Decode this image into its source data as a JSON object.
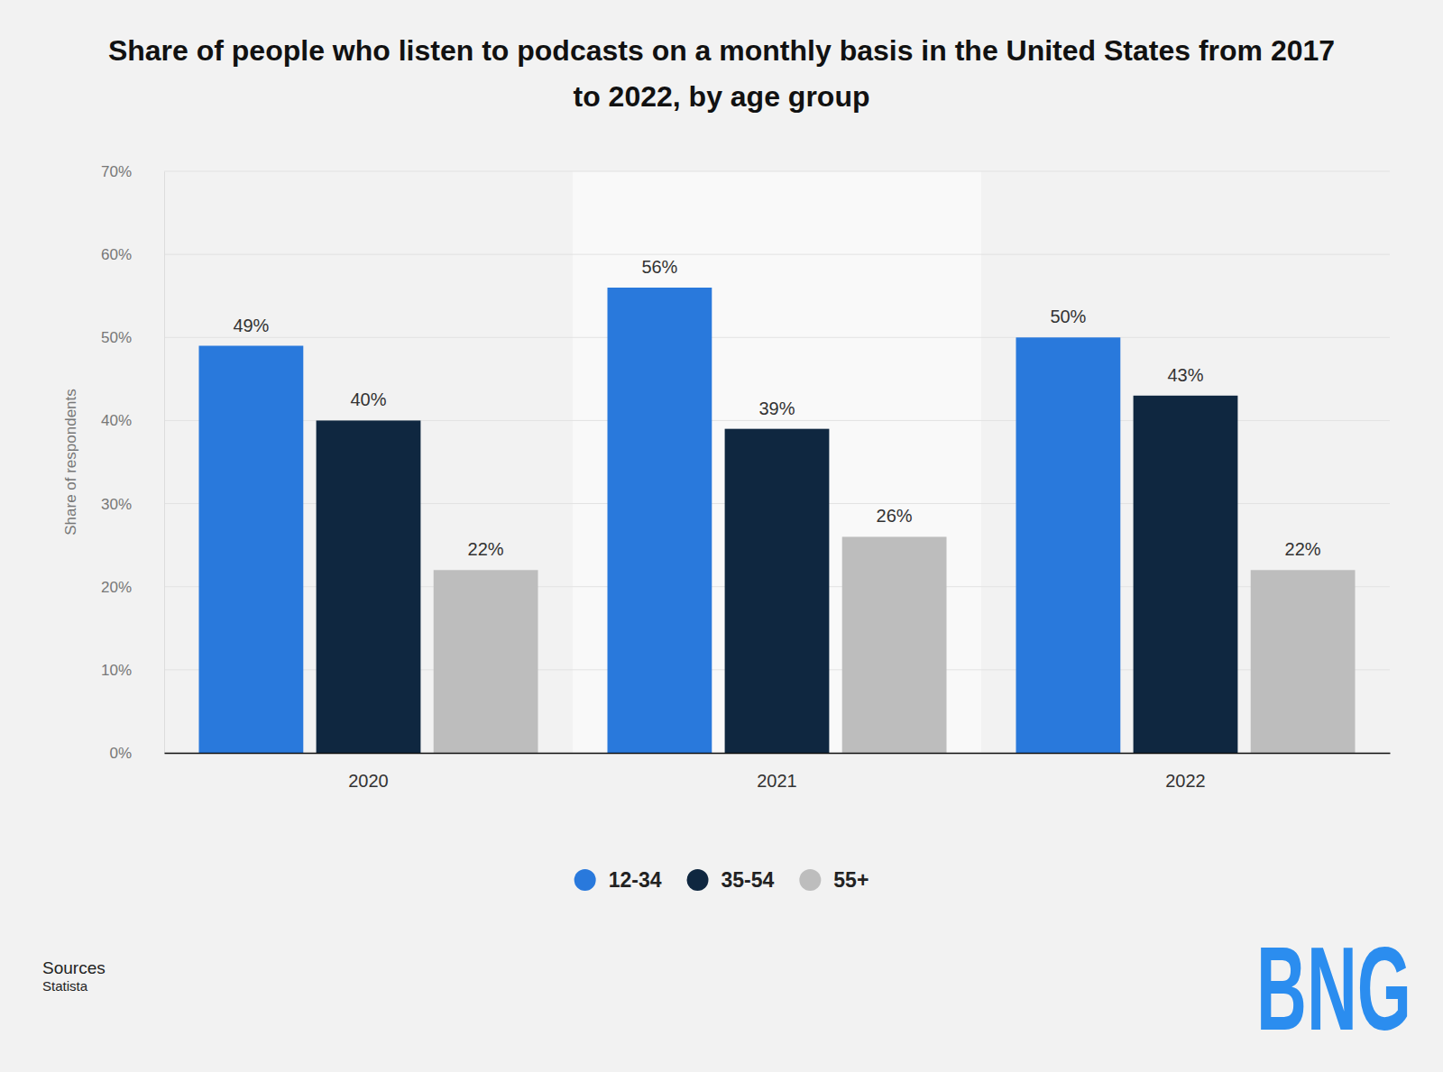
{
  "chart_data": {
    "type": "bar",
    "title": "Share of people who listen to podcasts on a monthly basis in the United States from 2017 to 2022, by age group",
    "y_label": "Share of respondents",
    "categories": [
      "2020",
      "2021",
      "2022"
    ],
    "series": [
      {
        "name": "12-34",
        "color": "#2979dc",
        "values": [
          49,
          56,
          50
        ],
        "value_labels": [
          "49%",
          "56%",
          "50%"
        ]
      },
      {
        "name": "35-54",
        "color": "#0f2740",
        "values": [
          40,
          39,
          43
        ],
        "value_labels": [
          "40%",
          "39%",
          "43%"
        ]
      },
      {
        "name": "55+",
        "color": "#bdbdbd",
        "values": [
          22,
          26,
          22
        ],
        "value_labels": [
          "22%",
          "26%",
          "22%"
        ]
      }
    ],
    "ylim": [
      0,
      70
    ],
    "yticks": [
      {
        "value": 0,
        "label": "0%"
      },
      {
        "value": 10,
        "label": "10%"
      },
      {
        "value": 20,
        "label": "20%"
      },
      {
        "value": 30,
        "label": "30%"
      },
      {
        "value": 40,
        "label": "40%"
      },
      {
        "value": 50,
        "label": "50%"
      },
      {
        "value": 60,
        "label": "60%"
      },
      {
        "value": 70,
        "label": "70%"
      }
    ],
    "grid": true,
    "data_labels": true,
    "legend": "bottom",
    "source_label": "Sources",
    "source": "Statista",
    "logo": "BNG"
  }
}
